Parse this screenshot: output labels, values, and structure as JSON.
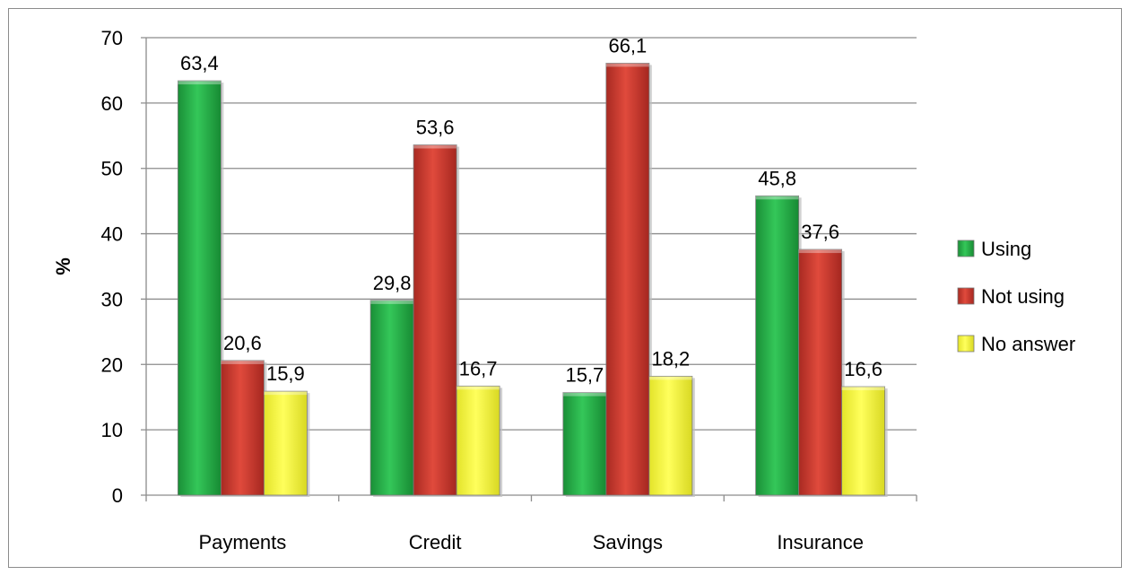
{
  "chart_data": {
    "type": "bar",
    "title": "",
    "xlabel": "",
    "ylabel": "%",
    "ylim": [
      0,
      70
    ],
    "yticks": [
      0,
      10,
      20,
      30,
      40,
      50,
      60,
      70
    ],
    "grid": true,
    "legend_position": "right",
    "categories": [
      "Payments",
      "Credit",
      "Savings",
      "Insurance"
    ],
    "series": [
      {
        "name": "Using",
        "color": "#2db84d",
        "values": [
          63.4,
          29.8,
          15.7,
          45.8
        ],
        "labels": [
          "63,4",
          "29,8",
          "15,7",
          "45,8"
        ]
      },
      {
        "name": "Not using",
        "color": "#d63a2e",
        "values": [
          20.6,
          53.6,
          66.1,
          37.6
        ],
        "labels": [
          "20,6",
          "53,6",
          "66,1",
          "37,6"
        ]
      },
      {
        "name": "No answer",
        "color": "#f5f53a",
        "values": [
          15.9,
          16.7,
          18.2,
          16.6
        ],
        "labels": [
          "15,9",
          "16,7",
          "18,2",
          "16,6"
        ]
      }
    ]
  }
}
